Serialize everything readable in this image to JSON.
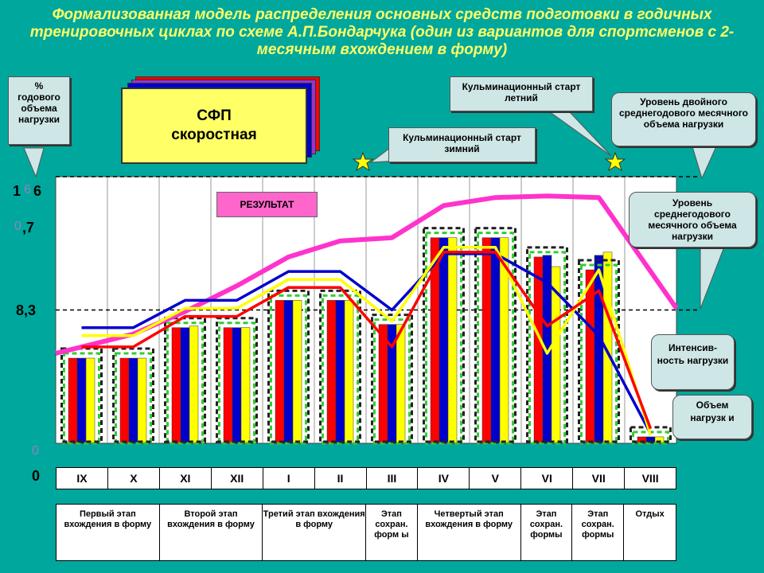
{
  "title": "Формализованная модель распределения основных средств подготовки в годичных тренировочных циклах по схеме А.П.Бондарчука (один из вариантов для спортсменов с 2-месячным вхождением в форму)",
  "callouts": {
    "percent": "% годового объема нагрузки",
    "culm_summer": "Кульминационный старт летний",
    "culm_winter": "Кульминационный старт зимний",
    "double_level": "Уровень двойного среднегодового месячного объема нагрузки",
    "avg_level": "Уровень среднегодового месячного объема нагрузки",
    "intensity": "Интенсив- ность нагрузки",
    "volume": "Объем нагрузк и",
    "result": "РЕЗУЛЬТАТ",
    "sfp_line1": "СФП",
    "sfp_line2": "скоростная"
  },
  "y_labels": {
    "top_a": "1",
    "top_faint": "6",
    "top_b": "6",
    "mid_faint": "0",
    "mid": ",7",
    "avg": "8,3",
    "zero_faint": "0",
    "zero": "0"
  },
  "months": [
    "IX",
    "X",
    "XI",
    "XII",
    "I",
    "II",
    "III",
    "IV",
    "V",
    "VI",
    "VII",
    "VIII"
  ],
  "stages": [
    {
      "label": "Первый этап вхождения в форму",
      "span": 2
    },
    {
      "label": "Второй этап вхождения в форму",
      "span": 2
    },
    {
      "label": "Третий этап вхождения в форму",
      "span": 2
    },
    {
      "label": "Этап сохран. форм ы",
      "span": 1
    },
    {
      "label": "Четвертый этап вхождения в форму",
      "span": 2
    },
    {
      "label": "Этап сохран. формы",
      "span": 1
    },
    {
      "label": "Этап сохран. формы",
      "span": 1
    },
    {
      "label": "Отдых",
      "span": 1
    }
  ],
  "colors": {
    "background": "#00a79d",
    "title": "#ffff66",
    "red": "#ff0000",
    "blue": "#0000cc",
    "yellow": "#ffff00",
    "magenta": "#ff33cc",
    "green_dash": "#33cc33"
  },
  "chart_data": {
    "type": "bar",
    "ylim": [
      0,
      16.6
    ],
    "categories": [
      "IX",
      "X",
      "XI",
      "XII",
      "I",
      "II",
      "III",
      "IV",
      "V",
      "VI",
      "VII",
      "VIII"
    ],
    "reference_lines": [
      8.3,
      16.6
    ],
    "series": [
      {
        "name": "",
        "color": "red",
        "values": [
          5.3,
          5.3,
          7.2,
          7.2,
          8.9,
          8.9,
          7.4,
          12.8,
          12.8,
          11.6,
          10.8,
          0.4
        ]
      },
      {
        "name": "",
        "color": "blue",
        "values": [
          5.3,
          5.3,
          7.2,
          7.2,
          8.9,
          8.9,
          7.4,
          12.8,
          12.8,
          11.7,
          11.7,
          0.4
        ]
      },
      {
        "name": "",
        "color": "yellow",
        "values": [
          5.3,
          5.3,
          7.3,
          7.2,
          8.9,
          8.9,
          7.4,
          12.8,
          12.8,
          11.0,
          11.9,
          0.4
        ]
      }
    ],
    "lines": [
      {
        "name": "",
        "color": "magenta",
        "x": [
          "IX-start",
          "X",
          "XI",
          "XII",
          "I",
          "II",
          "III",
          "IV",
          "V",
          "VI",
          "VII",
          "VIII-end"
        ],
        "values": [
          5.6,
          6.8,
          8.2,
          9.8,
          11.6,
          12.6,
          12.8,
          14.8,
          15.3,
          15.4,
          15.3,
          8.4
        ]
      },
      {
        "name": "",
        "color": "blue",
        "values": [
          7.2,
          7.2,
          8.9,
          8.9,
          10.7,
          10.7,
          8.3,
          11.8,
          11.8,
          10.0,
          6.7,
          0.6
        ]
      },
      {
        "name": "",
        "color": "yellow",
        "values": [
          6.7,
          6.7,
          8.4,
          8.4,
          10.2,
          10.2,
          7.6,
          12.2,
          12.2,
          5.6,
          10.8,
          0.5
        ]
      },
      {
        "name": "",
        "color": "red",
        "values": [
          6.0,
          6.0,
          7.9,
          7.9,
          9.7,
          9.7,
          6.0,
          11.9,
          11.9,
          7.3,
          9.5,
          0.9
        ]
      }
    ]
  }
}
